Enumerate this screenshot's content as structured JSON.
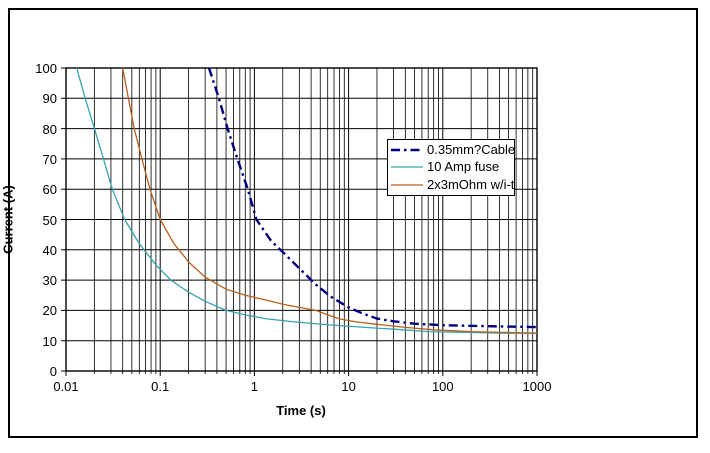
{
  "figure": {
    "background": "#ffffff",
    "border_color": "#000000",
    "grid_color": "#000000"
  },
  "chart_data": {
    "type": "line",
    "title": "",
    "xlabel": "Time (s)",
    "ylabel": "Current (A)",
    "x_scale": "log",
    "y_scale": "linear",
    "xlim": [
      0.01,
      1000
    ],
    "ylim": [
      0,
      100
    ],
    "x_ticks": [
      "0.01",
      "0.1",
      "1",
      "10",
      "100",
      "1000"
    ],
    "y_ticks": [
      0,
      10,
      20,
      30,
      40,
      50,
      60,
      70,
      80,
      90,
      100
    ],
    "grid": {
      "x_major": true,
      "x_minor": true,
      "y_major": true,
      "y_minor": false
    },
    "legend_position": "upper-right-inside",
    "series": [
      {
        "name": "0.35mm?Cable",
        "color": "#000080",
        "style": "dash-dot",
        "width": 2.4,
        "points": [
          [
            0.33,
            100
          ],
          [
            0.42,
            90
          ],
          [
            0.52,
            80
          ],
          [
            0.66,
            70
          ],
          [
            0.85,
            60
          ],
          [
            1.05,
            50
          ],
          [
            1.5,
            43
          ],
          [
            2.2,
            38
          ],
          [
            3.2,
            33
          ],
          [
            4.5,
            28.5
          ],
          [
            6.5,
            24.5
          ],
          [
            10,
            21
          ],
          [
            14,
            19
          ],
          [
            20,
            17.3
          ],
          [
            30,
            16.4
          ],
          [
            50,
            15.6
          ],
          [
            100,
            15.1
          ],
          [
            300,
            14.8
          ],
          [
            1000,
            14.5
          ]
        ]
      },
      {
        "name": "10 Amp fuse",
        "color": "#35A3B4",
        "style": "solid",
        "width": 1.3,
        "points": [
          [
            0.013,
            100
          ],
          [
            0.016,
            90
          ],
          [
            0.02,
            80
          ],
          [
            0.025,
            70
          ],
          [
            0.031,
            60
          ],
          [
            0.042,
            50
          ],
          [
            0.06,
            42
          ],
          [
            0.09,
            35
          ],
          [
            0.13,
            30
          ],
          [
            0.2,
            26
          ],
          [
            0.3,
            23
          ],
          [
            0.5,
            20
          ],
          [
            0.8,
            18.5
          ],
          [
            1.3,
            17.3
          ],
          [
            2.5,
            16.3
          ],
          [
            4,
            15.7
          ],
          [
            8,
            15
          ],
          [
            15,
            14.4
          ],
          [
            30,
            13.8
          ],
          [
            70,
            13
          ],
          [
            150,
            12.8
          ],
          [
            400,
            12.5
          ],
          [
            1000,
            12.4
          ]
        ]
      },
      {
        "name": "2x3mOhm w/i-t",
        "color": "#BE5E1A",
        "style": "solid",
        "width": 1.3,
        "points": [
          [
            0.04,
            100
          ],
          [
            0.046,
            90
          ],
          [
            0.053,
            80
          ],
          [
            0.064,
            70
          ],
          [
            0.078,
            60
          ],
          [
            0.1,
            50
          ],
          [
            0.14,
            42
          ],
          [
            0.2,
            36
          ],
          [
            0.3,
            31
          ],
          [
            0.5,
            27
          ],
          [
            0.8,
            25
          ],
          [
            1.3,
            23.5
          ],
          [
            2,
            22
          ],
          [
            3,
            21
          ],
          [
            4.5,
            20
          ],
          [
            6,
            18.5
          ],
          [
            8,
            17.2
          ],
          [
            12,
            16.2
          ],
          [
            20,
            15.4
          ],
          [
            40,
            14.4
          ],
          [
            80,
            13.6
          ],
          [
            200,
            13
          ],
          [
            500,
            12.7
          ],
          [
            1000,
            12.5
          ]
        ]
      }
    ]
  }
}
